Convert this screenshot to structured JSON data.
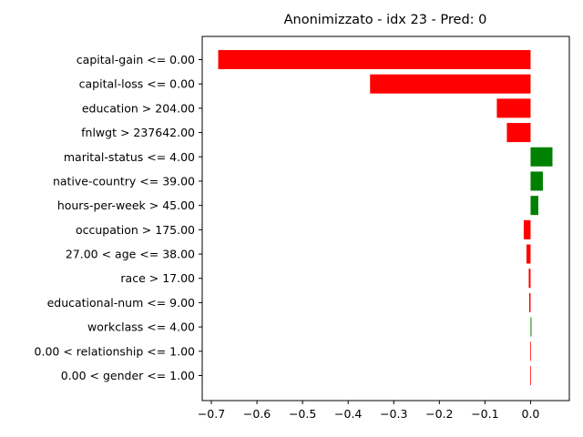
{
  "chart_data": {
    "type": "bar",
    "orientation": "horizontal",
    "title": "Anonimizzato - idx 23 - Pred: 0",
    "categories": [
      "capital-gain <= 0.00",
      "capital-loss <= 0.00",
      "education > 204.00",
      "fnlwgt > 237642.00",
      "marital-status <= 4.00",
      "native-country <= 39.00",
      "hours-per-week > 45.00",
      "occupation > 175.00",
      "27.00 < age <= 38.00",
      "race > 17.00",
      "educational-num <= 9.00",
      "workclass <= 4.00",
      "0.00 < relationship <= 1.00",
      "0.00 < gender <= 1.00"
    ],
    "values": [
      -0.685,
      -0.352,
      -0.074,
      -0.052,
      0.048,
      0.027,
      0.017,
      -0.015,
      -0.009,
      -0.004,
      -0.003,
      0.002,
      -0.001,
      -0.001
    ],
    "xlim": [
      -0.72,
      0.085
    ],
    "xticks": [
      -0.7,
      -0.6,
      -0.5,
      -0.4,
      -0.3,
      -0.2,
      -0.1,
      0.0
    ],
    "xtick_labels": [
      "−0.7",
      "−0.6",
      "−0.5",
      "−0.4",
      "−0.3",
      "−0.2",
      "−0.1",
      "0.0"
    ],
    "colors": {
      "positive": "#008000",
      "negative": "#ff0000"
    },
    "grid": false,
    "xlabel": "",
    "ylabel": ""
  }
}
